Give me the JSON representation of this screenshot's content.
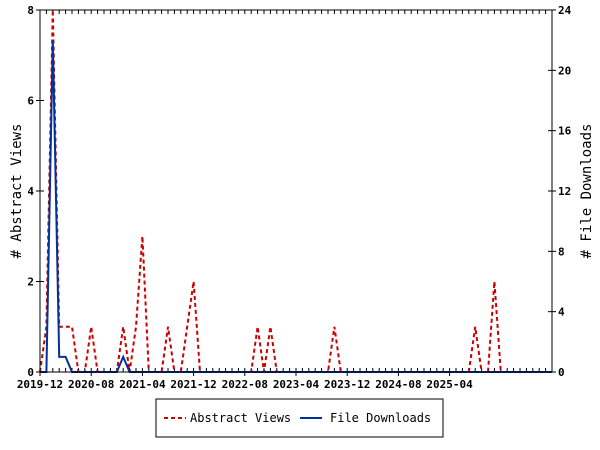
{
  "chart_data": {
    "type": "line",
    "x_tick_labels": [
      "2019-12",
      "2020-08",
      "2021-04",
      "2021-12",
      "2022-08",
      "2023-04",
      "2023-12",
      "2024-08",
      "2025-04"
    ],
    "y_left_label": "# Abstract Views",
    "y_right_label": "# File Downloads",
    "y_left_ticks": [
      "0",
      "2",
      "4",
      "6",
      "8"
    ],
    "y_right_ticks": [
      "0",
      "4",
      "8",
      "12",
      "16",
      "20",
      "24"
    ],
    "ylim_left": [
      0,
      8
    ],
    "ylim_right": [
      0,
      24
    ],
    "start_month": "2019-12",
    "series": [
      {
        "name": "Abstract Views",
        "axis": "left",
        "color": "#cc0000",
        "style": "dashed",
        "values": [
          0,
          1,
          8,
          1,
          1,
          1,
          0,
          0,
          1,
          0,
          0,
          0,
          0,
          1,
          0,
          1,
          3,
          0,
          0,
          0,
          1,
          0,
          0,
          1,
          2,
          0,
          0,
          0,
          0,
          0,
          0,
          0,
          0,
          0,
          1,
          0,
          1,
          0,
          0,
          0,
          0,
          0,
          0,
          0,
          0,
          0,
          1,
          0,
          0,
          0,
          0,
          0,
          0,
          0,
          0,
          0,
          0,
          0,
          0,
          0,
          0,
          0,
          0,
          0,
          0,
          0,
          0,
          0,
          1,
          0,
          0,
          2,
          0,
          0,
          0,
          0,
          0,
          0,
          0,
          0,
          0
        ]
      },
      {
        "name": "File Downloads",
        "axis": "right",
        "color": "#003399",
        "style": "solid",
        "values": [
          0,
          0,
          22,
          1,
          1,
          0,
          0,
          0,
          0,
          0,
          0,
          0,
          0,
          1,
          0,
          0,
          0,
          0,
          0,
          0,
          0,
          0,
          0,
          0,
          0,
          0,
          0,
          0,
          0,
          0,
          0,
          0,
          0,
          0,
          0,
          0,
          0,
          0,
          0,
          0,
          0,
          0,
          0,
          0,
          0,
          0,
          0,
          0,
          0,
          0,
          0,
          0,
          0,
          0,
          0,
          0,
          0,
          0,
          0,
          0,
          0,
          0,
          0,
          0,
          0,
          0,
          0,
          0,
          0,
          0,
          0,
          0,
          0,
          0,
          0,
          0,
          0,
          0,
          0,
          0,
          0
        ]
      }
    ]
  },
  "legend": {
    "abstract_label": "Abstract Views",
    "downloads_label": "File Downloads"
  },
  "colors": {
    "views": "#cc0000",
    "downloads": "#003399"
  }
}
